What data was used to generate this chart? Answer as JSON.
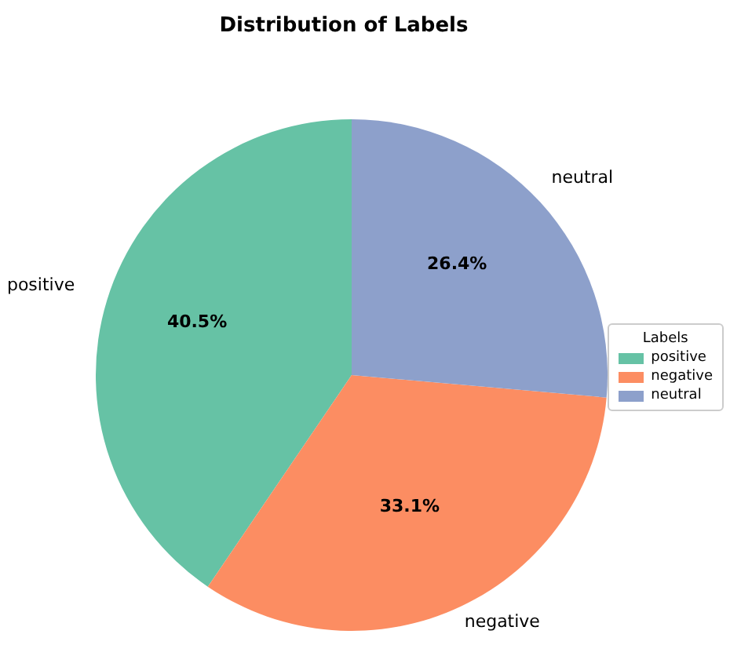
{
  "chart_data": {
    "type": "pie",
    "title": "Distribution of Labels",
    "categories": [
      "positive",
      "negative",
      "neutral"
    ],
    "values": [
      40.5,
      33.1,
      26.4
    ],
    "colors": [
      "#66c2a5",
      "#fc8d62",
      "#8da0cb"
    ],
    "value_labels": [
      "40.5%",
      "33.1%",
      "26.4%"
    ],
    "legend": "right",
    "legend_title": "Labels"
  }
}
